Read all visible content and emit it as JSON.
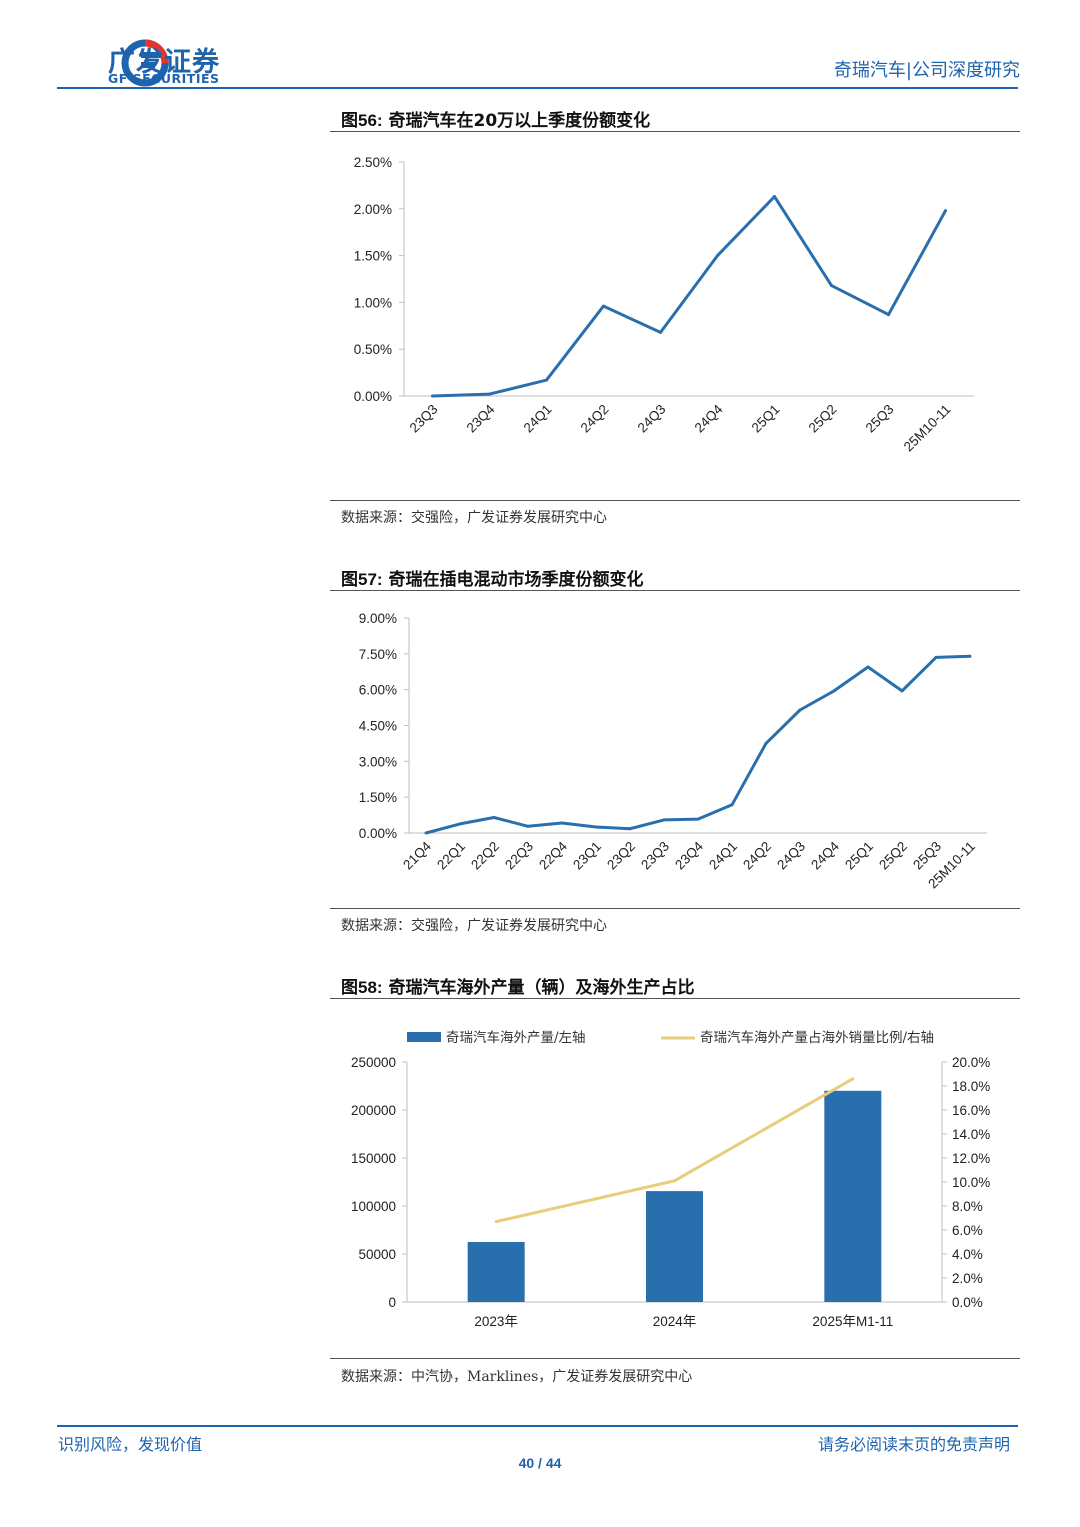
{
  "header": {
    "logo_cn": "广发证券",
    "logo_en": "GF SECURITIES",
    "right_text": "奇瑞汽车|公司深度研究"
  },
  "figures": [
    {
      "label": "图56:",
      "title": "奇瑞汽车在20万以上季度份额变化",
      "source": "数据来源：交强险，广发证券发展研究中心"
    },
    {
      "label": "图57:",
      "title": "奇瑞在插电混动市场季度份额变化",
      "source": "数据来源：交强险，广发证券发展研究中心"
    },
    {
      "label": "图58:",
      "title": "奇瑞汽车海外产量（辆）及海外生产占比",
      "source": "数据来源：中汽协，Marklines，广发证券发展研究中心"
    }
  ],
  "chart_data": [
    {
      "type": "line",
      "categories": [
        "23Q3",
        "23Q4",
        "24Q1",
        "24Q2",
        "24Q3",
        "24Q4",
        "25Q1",
        "25Q2",
        "25Q3",
        "25M10-11"
      ],
      "values": [
        0.0,
        0.02,
        0.17,
        0.96,
        0.68,
        1.5,
        2.13,
        1.18,
        0.87,
        1.98
      ],
      "ylim": [
        0,
        2.5
      ],
      "yticks": [
        "0.00%",
        "0.50%",
        "1.00%",
        "1.50%",
        "2.00%",
        "2.50%"
      ],
      "color": "#2a6fad"
    },
    {
      "type": "line",
      "categories": [
        "21Q4",
        "22Q1",
        "22Q2",
        "22Q3",
        "22Q4",
        "23Q1",
        "23Q2",
        "23Q3",
        "23Q4",
        "24Q1",
        "24Q2",
        "24Q3",
        "24Q4",
        "25Q1",
        "25Q2",
        "25Q3",
        "25M10-11"
      ],
      "values": [
        0.0,
        0.38,
        0.65,
        0.28,
        0.42,
        0.25,
        0.18,
        0.55,
        0.58,
        1.18,
        3.75,
        5.15,
        5.95,
        6.95,
        5.95,
        7.35,
        7.4
      ],
      "ylim": [
        0,
        9
      ],
      "yticks": [
        "0.00%",
        "1.50%",
        "3.00%",
        "4.50%",
        "6.00%",
        "7.50%",
        "9.00%"
      ],
      "color": "#2a6fad"
    },
    {
      "type": "bar",
      "categories": [
        "2023年",
        "2024年",
        "2025年M1-11"
      ],
      "series": [
        {
          "name": "奇瑞汽车海外产量/左轴",
          "type": "bar",
          "values": [
            62500,
            115500,
            220000
          ],
          "color": "#2a6fad"
        },
        {
          "name": "奇瑞汽车海外产量占海外销量比例/右轴",
          "type": "line",
          "values": [
            6.7,
            10.1,
            18.6
          ],
          "color": "#e8cd7a"
        }
      ],
      "ylim_left": [
        0,
        250000
      ],
      "ylim_right": [
        0,
        20
      ],
      "yticks_left": [
        "0",
        "50000",
        "100000",
        "150000",
        "200000",
        "250000"
      ],
      "yticks_right": [
        "0.0%",
        "2.0%",
        "4.0%",
        "6.0%",
        "8.0%",
        "10.0%",
        "12.0%",
        "14.0%",
        "16.0%",
        "18.0%",
        "20.0%"
      ]
    }
  ],
  "footer": {
    "left": "识别风险，发现价值",
    "right": "请务必阅读末页的免责声明",
    "page": "40 / 44"
  }
}
